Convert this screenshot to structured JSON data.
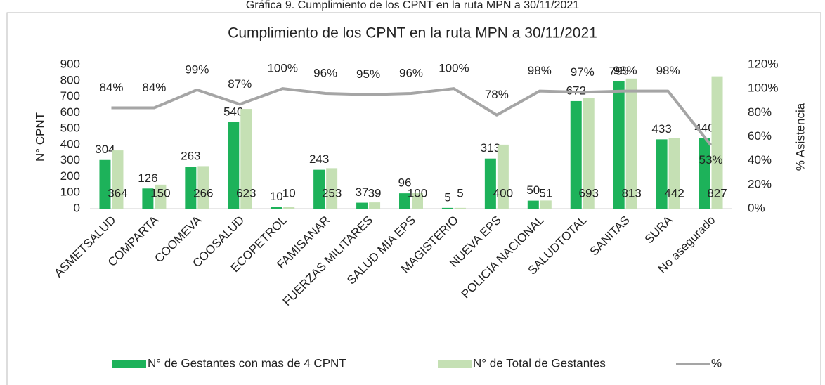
{
  "caption": "Gráfica 9. Cumplimiento de los CPNT en la ruta MPN a 30/11/2021",
  "chart_data": {
    "type": "bar",
    "title": "Cumplimiento de los CPNT en la ruta MPN a 30/11/2021",
    "ylabel": "N° CPNT",
    "y2label": "% Asistencia",
    "categories": [
      "ASMETSALUD",
      "COMPARTA",
      "COOMEVA",
      "COOSALUD",
      "ECOPETROL",
      "FAMISANAR",
      "FUERZAS MILITARES",
      "SALUD MIA EPS",
      "MAGISTERIO",
      "NUEVA EPS",
      "POLICIA NACIONAL",
      "SALUDTOTAL",
      "SANITAS",
      "SURA",
      "No asegurado"
    ],
    "series": [
      {
        "name": "N° de Gestantes con mas de 4 CPNT",
        "color": "#1db25a",
        "values": [
          304,
          126,
          263,
          540,
          10,
          243,
          37,
          96,
          5,
          313,
          50,
          672,
          795,
          433,
          440
        ]
      },
      {
        "name": "N° de Total de Gestantes",
        "color": "#c5e0b4",
        "values": [
          364,
          150,
          266,
          623,
          10,
          253,
          39,
          100,
          5,
          400,
          51,
          693,
          813,
          442,
          827
        ]
      },
      {
        "name": "%",
        "color": "#a5a5a5",
        "axis": "y2",
        "type": "line",
        "values": [
          84,
          84,
          99,
          87,
          100,
          96,
          95,
          96,
          100,
          78,
          98,
          97,
          98,
          98,
          53
        ],
        "value_labels": [
          "84%",
          "84%",
          "99%",
          "87%",
          "100%",
          "96%",
          "95%",
          "96%",
          "100%",
          "78%",
          "98%",
          "97%",
          "98%",
          "98%",
          "53%"
        ]
      }
    ],
    "ylim": [
      0,
      900
    ],
    "yticks": [
      0,
      100,
      200,
      300,
      400,
      500,
      600,
      700,
      800,
      900
    ],
    "y2lim": [
      0,
      120
    ],
    "y2ticks": [
      {
        "value": 0,
        "label": "0%"
      },
      {
        "value": 20,
        "label": "20%"
      },
      {
        "value": 40,
        "label": "40%"
      },
      {
        "value": 60,
        "label": "60%"
      },
      {
        "value": 80,
        "label": "80%"
      },
      {
        "value": 100,
        "label": "100%"
      },
      {
        "value": 120,
        "label": "120%"
      }
    ],
    "legend": "bottom"
  }
}
